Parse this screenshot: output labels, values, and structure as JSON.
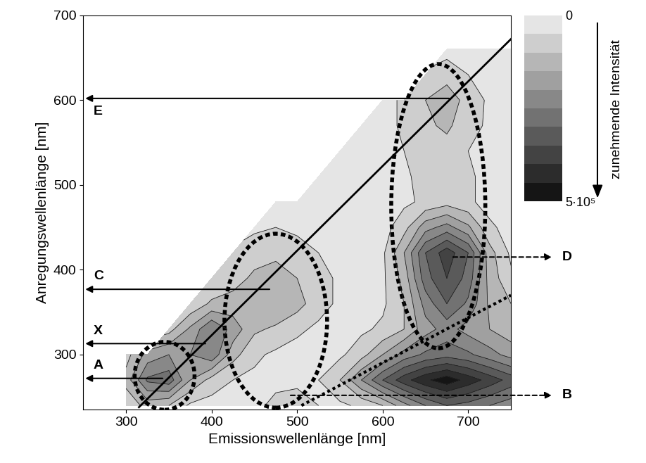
{
  "chart_data": {
    "type": "contour",
    "xlabel": "Emissionswellenlänge [nm]",
    "ylabel": "Anregungswellenlänge [nm]",
    "xlim": [
      250,
      750
    ],
    "ylim": [
      235,
      700
    ],
    "xticks": [
      300,
      400,
      500,
      600,
      700
    ],
    "yticks": [
      300,
      400,
      500,
      600,
      700
    ],
    "colorbar_label": "zunehmende Intensität",
    "colorbar_range": [
      0,
      500000
    ],
    "colorbar_ticks": [
      0,
      {
        "value": 500000,
        "label": "5·10⁵"
      }
    ],
    "x": [
      300,
      325,
      350,
      375,
      400,
      425,
      450,
      475,
      500,
      525,
      550,
      575,
      600,
      625,
      650,
      675,
      700,
      725,
      750
    ],
    "y": [
      240,
      270,
      300,
      330,
      360,
      390,
      420,
      450,
      480,
      510,
      540,
      570,
      600,
      630,
      660
    ],
    "cells": [
      [
        60000,
        120000,
        100000,
        40000,
        30000,
        30000,
        40000,
        60000,
        70000,
        50000,
        40000,
        60000,
        100000,
        180000,
        250000,
        300000,
        280000,
        250000,
        220000
      ],
      [
        120000,
        260000,
        280000,
        150000,
        80000,
        50000,
        40000,
        40000,
        40000,
        50000,
        100000,
        200000,
        300000,
        380000,
        440000,
        480000,
        430000,
        380000,
        330000
      ],
      [
        80000,
        170000,
        200000,
        200000,
        240000,
        120000,
        60000,
        40000,
        30000,
        30000,
        40000,
        80000,
        150000,
        220000,
        260000,
        280000,
        260000,
        220000,
        180000
      ],
      [
        null,
        null,
        80000,
        160000,
        250000,
        180000,
        110000,
        90000,
        60000,
        40000,
        30000,
        40000,
        60000,
        100000,
        180000,
        220000,
        180000,
        150000,
        120000
      ],
      [
        null,
        null,
        null,
        60000,
        110000,
        120000,
        130000,
        150000,
        120000,
        70000,
        40000,
        30000,
        40000,
        100000,
        220000,
        300000,
        240000,
        140000,
        100000
      ],
      [
        null,
        null,
        null,
        null,
        50000,
        80000,
        110000,
        120000,
        100000,
        70000,
        40000,
        30000,
        40000,
        120000,
        280000,
        350000,
        280000,
        130000,
        60000
      ],
      [
        null,
        null,
        null,
        null,
        null,
        60000,
        80000,
        90000,
        70000,
        50000,
        30000,
        20000,
        40000,
        150000,
        300000,
        380000,
        300000,
        120000,
        40000
      ],
      [
        null,
        null,
        null,
        null,
        null,
        null,
        40000,
        50000,
        40000,
        30000,
        20000,
        20000,
        30000,
        80000,
        180000,
        220000,
        160000,
        60000,
        30000
      ],
      [
        null,
        null,
        null,
        null,
        null,
        null,
        null,
        20000,
        20000,
        20000,
        20000,
        20000,
        20000,
        40000,
        60000,
        80000,
        60000,
        30000,
        20000
      ],
      [
        null,
        null,
        null,
        null,
        null,
        null,
        null,
        null,
        null,
        20000,
        20000,
        20000,
        20000,
        40000,
        70000,
        90000,
        60000,
        30000,
        20000
      ],
      [
        null,
        null,
        null,
        null,
        null,
        null,
        null,
        null,
        null,
        null,
        20000,
        20000,
        30000,
        50000,
        70000,
        80000,
        50000,
        30000,
        20000
      ],
      [
        null,
        null,
        null,
        null,
        null,
        null,
        null,
        null,
        null,
        null,
        null,
        20000,
        30000,
        60000,
        90000,
        110000,
        70000,
        40000,
        30000
      ],
      [
        null,
        null,
        null,
        null,
        null,
        null,
        null,
        null,
        null,
        null,
        null,
        null,
        30000,
        60000,
        100000,
        130000,
        80000,
        40000,
        30000
      ],
      [
        null,
        null,
        null,
        null,
        null,
        null,
        null,
        null,
        null,
        null,
        null,
        null,
        null,
        null,
        60000,
        80000,
        50000,
        30000,
        20000
      ],
      [
        null,
        null,
        null,
        null,
        null,
        null,
        null,
        null,
        null,
        null,
        null,
        null,
        null,
        null,
        null,
        30000,
        30000,
        20000,
        20000
      ]
    ],
    "reference_line": {
      "x": [
        315,
        750
      ],
      "y": [
        238,
        672
      ]
    },
    "second_order_line": {
      "x": [
        505,
        750
      ],
      "y": [
        240,
        370
      ]
    },
    "regions": [
      {
        "center": [
          345,
          275
        ],
        "width": 70,
        "height": 80
      },
      {
        "center": [
          475,
          340
        ],
        "width": 120,
        "height": 205
      },
      {
        "center": [
          665,
          475
        ],
        "width": 110,
        "height": 335
      }
    ],
    "left_markers": [
      {
        "label": "A",
        "emission": 345,
        "excitation": 272
      },
      {
        "label": "X",
        "emission": 395,
        "excitation": 313
      },
      {
        "label": "C",
        "emission": 470,
        "excitation": 377
      },
      {
        "label": "E",
        "emission": 680,
        "excitation": 602
      }
    ],
    "right_markers": [
      {
        "label": "D",
        "emission": 680,
        "excitation": 415
      },
      {
        "label": "B",
        "emission": 490,
        "excitation": 252
      }
    ]
  }
}
